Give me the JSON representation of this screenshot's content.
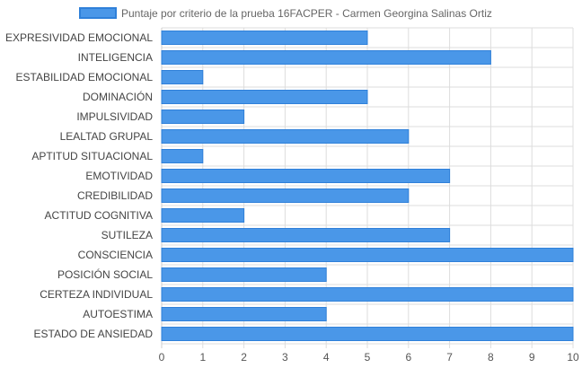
{
  "chart_data": {
    "type": "bar",
    "orientation": "horizontal",
    "categories": [
      "EXPRESIVIDAD EMOCIONAL",
      "INTELIGENCIA",
      "ESTABILIDAD EMOCIONAL",
      "DOMINACIÓN",
      "IMPULSIVIDAD",
      "LEALTAD GRUPAL",
      "APTITUD SITUACIONAL",
      "EMOTIVIDAD",
      "CREDIBILIDAD",
      "ACTITUD COGNITIVA",
      "SUTILEZA",
      "CONSCIENCIA",
      "POSICIÓN SOCIAL",
      "CERTEZA INDIVIDUAL",
      "AUTOESTIMA",
      "ESTADO DE ANSIEDAD"
    ],
    "series": [
      {
        "name": "Puntaje por criterio de la prueba 16FACPER - Carmen Georgina Salinas Ortiz",
        "values": [
          5,
          8,
          1,
          5,
          2,
          6,
          1,
          7,
          6,
          2,
          7,
          10,
          4,
          10,
          4,
          10
        ]
      }
    ],
    "xlim": [
      0,
      10
    ],
    "x_ticks": [
      "0",
      "1",
      "2",
      "3",
      "4",
      "5",
      "6",
      "7",
      "8",
      "9",
      "10"
    ],
    "grid": true,
    "legend_position": "top",
    "colors": {
      "bar_fill": "#4a97e8",
      "bar_stroke": "#2f80d9",
      "grid": "#dddddd",
      "axis": "#cccccc"
    }
  }
}
